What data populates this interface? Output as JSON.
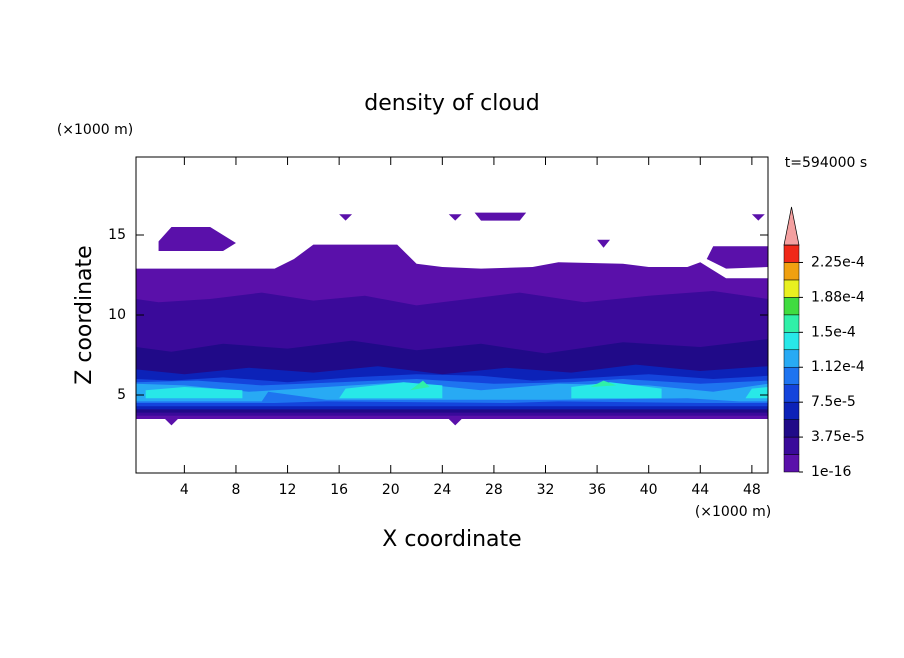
{
  "chart_data": {
    "type": "contour",
    "title": "density of cloud",
    "xlabel": "X coordinate",
    "ylabel": "Z coordinate",
    "xunit": "(×1000 m)",
    "yunit": "(×1000 m)",
    "annotation": "t=594000 s",
    "xlim": [
      0.25,
      49.25
    ],
    "ylim": [
      0.125,
      19.875
    ],
    "xticks": [
      4,
      8,
      12,
      16,
      20,
      24,
      28,
      32,
      36,
      40,
      44,
      48
    ],
    "yticks": [
      5,
      10,
      15
    ],
    "colorbar": {
      "levels": [
        1e-16,
        1.875e-05,
        3.75e-05,
        5.625e-05,
        7.5e-05,
        9.375e-05,
        0.0001125,
        0.00013125,
        0.00015,
        0.00016875,
        0.0001875,
        0.00020625,
        0.000225,
        0.00024375
      ],
      "colors": [
        "#5a10aa",
        "#3a0a9a",
        "#200a88",
        "#0c22b8",
        "#1444dc",
        "#1e74f0",
        "#28aaf4",
        "#28e8e8",
        "#30f0a8",
        "#40dc40",
        "#e8f020",
        "#f0a010",
        "#f02818"
      ],
      "extend_color": "#f4a0a0",
      "ticks": [
        {
          "value": 1e-16,
          "label": "1e-16"
        },
        {
          "value": 3.75e-05,
          "label": "3.75e-5"
        },
        {
          "value": 7.5e-05,
          "label": "7.5e-5"
        },
        {
          "value": 0.0001125,
          "label": "1.12e-4"
        },
        {
          "value": 0.00015,
          "label": "1.5e-4"
        },
        {
          "value": 0.0001875,
          "label": "1.88e-4"
        },
        {
          "value": 0.000225,
          "label": "2.25e-4"
        }
      ]
    },
    "regions": [
      {
        "value": 1e-16,
        "x": [
          0.25,
          2.5,
          3,
          3.5,
          24.5,
          25,
          25.5,
          49.25,
          49.25,
          46,
          44,
          43,
          40,
          38,
          33,
          31,
          27,
          24,
          22,
          20.5,
          14,
          12.5,
          11,
          0.25
        ],
        "y": [
          3.5,
          3.5,
          3.1,
          3.5,
          3.5,
          3.1,
          3.5,
          3.5,
          12.3,
          12.3,
          13.3,
          13,
          13,
          13.2,
          13.3,
          13,
          12.9,
          13,
          13.2,
          14.4,
          14.4,
          13.5,
          12.9,
          12.9
        ]
      },
      {
        "value": 1e-16,
        "x": [
          2,
          3,
          6,
          7,
          8,
          7,
          2
        ],
        "y": [
          14.6,
          15.5,
          15.5,
          15,
          14.5,
          14,
          14
        ]
      },
      {
        "value": 1e-16,
        "x": [
          16,
          17,
          16.5
        ],
        "y": [
          16.3,
          16.3,
          15.9
        ]
      },
      {
        "value": 1e-16,
        "x": [
          24.5,
          25.5,
          25
        ],
        "y": [
          16.3,
          16.3,
          15.9
        ]
      },
      {
        "value": 1e-16,
        "x": [
          26.5,
          30.5,
          30,
          27
        ],
        "y": [
          16.4,
          16.4,
          15.9,
          15.9
        ]
      },
      {
        "value": 1e-16,
        "x": [
          48,
          49,
          48.5
        ],
        "y": [
          16.3,
          16.3,
          15.9
        ]
      },
      {
        "value": 1e-16,
        "x": [
          36,
          37,
          36.5
        ],
        "y": [
          14.7,
          14.7,
          14.2
        ]
      },
      {
        "value": 1e-16,
        "x": [
          45,
          49.25,
          49.25,
          46,
          44.5
        ],
        "y": [
          14.3,
          14.3,
          13,
          12.9,
          13.5
        ]
      },
      {
        "value": 1.875e-05,
        "x": [
          0.25,
          49.25,
          49.25,
          45,
          40,
          35,
          30,
          26,
          22,
          18,
          14,
          10,
          6,
          2,
          0.25
        ],
        "y": [
          3.7,
          3.7,
          11,
          11.5,
          11.2,
          10.8,
          11.4,
          11,
          10.6,
          11.2,
          10.9,
          11.4,
          11,
          10.8,
          11
        ]
      },
      {
        "value": 3.75e-05,
        "x": [
          0.25,
          49.25,
          49.25,
          44,
          38,
          32,
          27,
          22,
          17,
          12,
          7,
          3,
          0.25
        ],
        "y": [
          3.9,
          3.9,
          8.5,
          8,
          8.3,
          7.6,
          8.2,
          7.8,
          8.4,
          7.9,
          8.2,
          7.7,
          8
        ]
      },
      {
        "value": 5.625e-05,
        "x": [
          0.25,
          49.25,
          49.25,
          44,
          39,
          34,
          29,
          24,
          19,
          14,
          9,
          4,
          0.25
        ],
        "y": [
          4.1,
          4.1,
          6.8,
          6.5,
          6.9,
          6.4,
          6.7,
          6.3,
          6.8,
          6.4,
          6.7,
          6.3,
          6.6
        ]
      },
      {
        "value": 7.5e-05,
        "x": [
          0.25,
          49.25,
          49.25,
          45,
          40,
          36,
          31,
          27,
          22,
          17,
          12,
          7,
          3,
          0.25
        ],
        "y": [
          4.3,
          4.3,
          6.2,
          6,
          6.3,
          6.1,
          5.9,
          6.2,
          6.3,
          6.1,
          5.8,
          6.1,
          5.9,
          6
        ]
      },
      {
        "value": 9.375e-05,
        "x": [
          0.25,
          11,
          15,
          29,
          33,
          44,
          49.25,
          49.25,
          44,
          38,
          34,
          28,
          22,
          16,
          10,
          5,
          0.25
        ],
        "y": [
          4.5,
          4.5,
          4.6,
          4.5,
          4.6,
          4.5,
          4.5,
          5.9,
          5.7,
          6,
          5.8,
          5.7,
          6,
          5.8,
          5.6,
          5.9,
          5.8
        ]
      },
      {
        "value": 0.0001125,
        "x": [
          0.25,
          10,
          10.5,
          15,
          27,
          33,
          43,
          47,
          49.25,
          49.25,
          45,
          40,
          33,
          27,
          21,
          15,
          9,
          4,
          0.25
        ],
        "y": [
          4.6,
          4.6,
          5.2,
          4.7,
          4.7,
          4.7,
          4.8,
          4.6,
          4.6,
          5.7,
          5.2,
          5.6,
          5.7,
          5.3,
          5.8,
          5.5,
          5.2,
          5.6,
          5.7
        ]
      },
      {
        "value": 0.00013125,
        "x": [
          1,
          8.5,
          8.5,
          4,
          1
        ],
        "y": [
          4.8,
          4.8,
          5.3,
          5.5,
          5.3
        ]
      },
      {
        "value": 0.00013125,
        "x": [
          16,
          24,
          24,
          21,
          16.5
        ],
        "y": [
          4.8,
          4.8,
          5.6,
          5.8,
          5.4
        ]
      },
      {
        "value": 0.00013125,
        "x": [
          34,
          41,
          41,
          37,
          34
        ],
        "y": [
          4.8,
          4.8,
          5.4,
          5.8,
          5.5
        ]
      },
      {
        "value": 0.00013125,
        "x": [
          47.5,
          49.25,
          49.25,
          48
        ],
        "y": [
          4.8,
          4.8,
          5.5,
          5.4
        ]
      },
      {
        "value": 0.00015,
        "x": [
          21.5,
          23,
          22.5
        ],
        "y": [
          5.3,
          5.5,
          5.9
        ]
      },
      {
        "value": 0.00015,
        "x": [
          35.5,
          37.5,
          36.5
        ],
        "y": [
          5.5,
          5.6,
          5.9
        ]
      }
    ]
  }
}
